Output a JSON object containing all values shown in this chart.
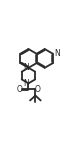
{
  "bg_color": "#ffffff",
  "line_color": "#2a2a2a",
  "line_width": 1.3,
  "figsize": [
    0.83,
    1.65
  ],
  "dpi": 100,
  "xlim": [
    0.0,
    1.0
  ],
  "ylim": [
    0.0,
    1.0
  ]
}
